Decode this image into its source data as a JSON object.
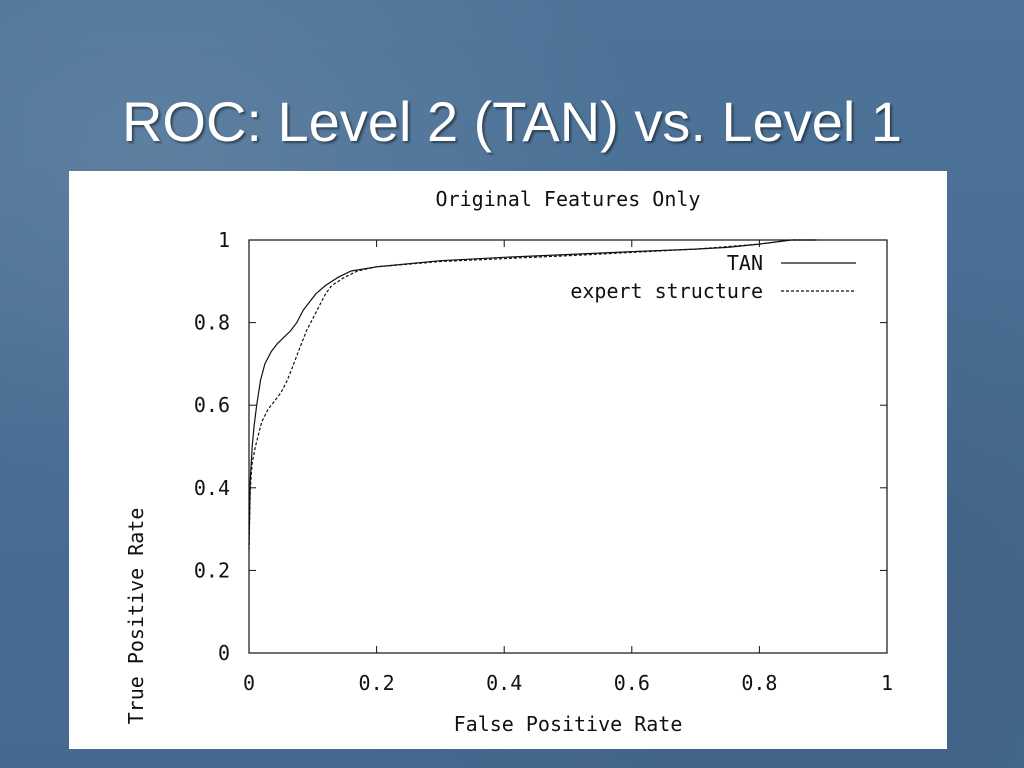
{
  "slide": {
    "title": "ROC: Level 2 (TAN) vs. Level 1",
    "colors": {
      "background": "#4a6f95",
      "title_text": "#ffffff",
      "chart_background": "#ffffff",
      "chart_ink": "#111111"
    }
  },
  "chart_data": {
    "type": "line",
    "title": "Original Features Only",
    "xlabel": "False Positive Rate",
    "ylabel": "True Positive Rate",
    "xlim": [
      0,
      1
    ],
    "ylim": [
      0,
      1
    ],
    "xticks": [
      "0",
      "0.2",
      "0.4",
      "0.6",
      "0.8",
      "1"
    ],
    "yticks": [
      "0",
      "0.2",
      "0.4",
      "0.6",
      "0.8",
      "1"
    ],
    "grid": false,
    "legend_position": "top-right",
    "series": [
      {
        "name": "TAN",
        "style": "solid",
        "x": [
          0.0,
          0.002,
          0.005,
          0.008,
          0.012,
          0.018,
          0.025,
          0.035,
          0.045,
          0.055,
          0.065,
          0.075,
          0.085,
          0.095,
          0.105,
          0.12,
          0.14,
          0.16,
          0.2,
          0.3,
          0.4,
          0.5,
          0.6,
          0.7,
          0.75,
          0.8,
          0.85,
          0.89
        ],
        "y": [
          0.26,
          0.42,
          0.5,
          0.55,
          0.6,
          0.66,
          0.7,
          0.73,
          0.75,
          0.765,
          0.78,
          0.8,
          0.83,
          0.85,
          0.87,
          0.89,
          0.91,
          0.925,
          0.935,
          0.95,
          0.958,
          0.965,
          0.972,
          0.978,
          0.982,
          0.99,
          1.0,
          1.0
        ]
      },
      {
        "name": "expert structure",
        "style": "dashed",
        "x": [
          0.0,
          0.002,
          0.005,
          0.01,
          0.015,
          0.02,
          0.03,
          0.04,
          0.05,
          0.06,
          0.07,
          0.08,
          0.09,
          0.1,
          0.11,
          0.12,
          0.13,
          0.15,
          0.17,
          0.2,
          0.3,
          0.4,
          0.5,
          0.6,
          0.7,
          0.8,
          0.85,
          0.89
        ],
        "y": [
          0.25,
          0.4,
          0.46,
          0.5,
          0.53,
          0.56,
          0.59,
          0.61,
          0.63,
          0.66,
          0.7,
          0.74,
          0.78,
          0.81,
          0.84,
          0.87,
          0.89,
          0.91,
          0.925,
          0.935,
          0.948,
          0.955,
          0.962,
          0.97,
          0.978,
          0.99,
          1.0,
          1.0
        ]
      }
    ]
  }
}
